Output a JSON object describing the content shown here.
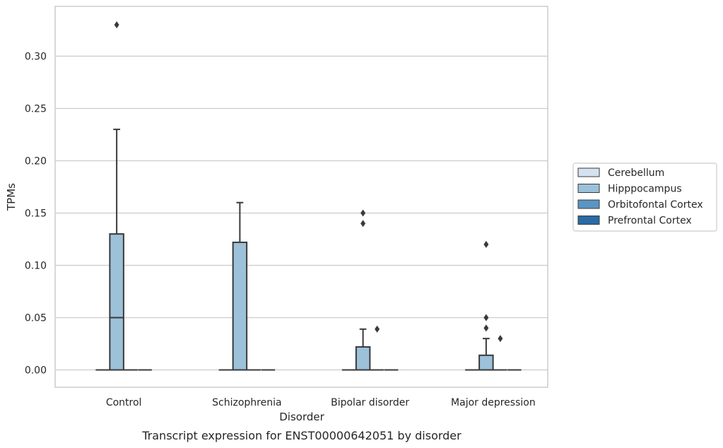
{
  "chart_data": {
    "type": "box",
    "caption": "Transcript expression for ENST00000642051 by disorder",
    "xlabel": "Disorder",
    "ylabel": "TPMs",
    "ylim": [
      -0.016,
      0.345
    ],
    "yticks": [
      "0.00",
      "0.05",
      "0.10",
      "0.15",
      "0.20",
      "0.25",
      "0.30"
    ],
    "ytick_values": [
      0,
      0.05,
      0.1,
      0.15,
      0.2,
      0.25,
      0.3
    ],
    "grid": true,
    "legend_position": "right",
    "categories": [
      "Control",
      "Schizophrenia",
      "Bipolar disorder",
      "Major depression"
    ],
    "series": [
      {
        "name": "Cerebellum",
        "color": "#d4e1ee",
        "boxes": [
          {
            "q1": 0,
            "median": 0,
            "q3": 0,
            "whisker_low": 0,
            "whisker_high": 0,
            "outliers": []
          },
          {
            "q1": 0,
            "median": 0,
            "q3": 0,
            "whisker_low": 0,
            "whisker_high": 0,
            "outliers": []
          },
          {
            "q1": 0,
            "median": 0,
            "q3": 0,
            "whisker_low": 0,
            "whisker_high": 0,
            "outliers": []
          },
          {
            "q1": 0,
            "median": 0,
            "q3": 0,
            "whisker_low": 0,
            "whisker_high": 0,
            "outliers": []
          }
        ]
      },
      {
        "name": "Hipppocampus",
        "color": "#9cc1d9",
        "boxes": [
          {
            "q1": 0,
            "median": 0.05,
            "q3": 0.13,
            "whisker_low": 0,
            "whisker_high": 0.23,
            "outliers": [
              0.33
            ]
          },
          {
            "q1": 0,
            "median": 0,
            "q3": 0.122,
            "whisker_low": 0,
            "whisker_high": 0.16,
            "outliers": []
          },
          {
            "q1": 0,
            "median": 0,
            "q3": 0.022,
            "whisker_low": 0,
            "whisker_high": 0.039,
            "outliers": [
              0.14,
              0.15
            ]
          },
          {
            "q1": 0,
            "median": 0,
            "q3": 0.014,
            "whisker_low": 0,
            "whisker_high": 0.03,
            "outliers": [
              0.04,
              0.05,
              0.12
            ]
          }
        ]
      },
      {
        "name": "Orbitofontal Cortex",
        "color": "#5a96c2",
        "boxes": [
          {
            "q1": 0,
            "median": 0,
            "q3": 0,
            "whisker_low": 0,
            "whisker_high": 0,
            "outliers": []
          },
          {
            "q1": 0,
            "median": 0,
            "q3": 0,
            "whisker_low": 0,
            "whisker_high": 0,
            "outliers": []
          },
          {
            "q1": 0,
            "median": 0,
            "q3": 0,
            "whisker_low": 0,
            "whisker_high": 0,
            "outliers": [
              0.039
            ]
          },
          {
            "q1": 0,
            "median": 0,
            "q3": 0,
            "whisker_low": 0,
            "whisker_high": 0,
            "outliers": [
              0.03
            ]
          }
        ]
      },
      {
        "name": "Prefrontal Cortex",
        "color": "#2a6aa5",
        "boxes": [
          {
            "q1": 0,
            "median": 0,
            "q3": 0,
            "whisker_low": 0,
            "whisker_high": 0,
            "outliers": []
          },
          {
            "q1": 0,
            "median": 0,
            "q3": 0,
            "whisker_low": 0,
            "whisker_high": 0,
            "outliers": []
          },
          {
            "q1": 0,
            "median": 0,
            "q3": 0,
            "whisker_low": 0,
            "whisker_high": 0,
            "outliers": []
          },
          {
            "q1": 0,
            "median": 0,
            "q3": 0,
            "whisker_low": 0,
            "whisker_high": 0,
            "outliers": []
          }
        ]
      }
    ]
  }
}
